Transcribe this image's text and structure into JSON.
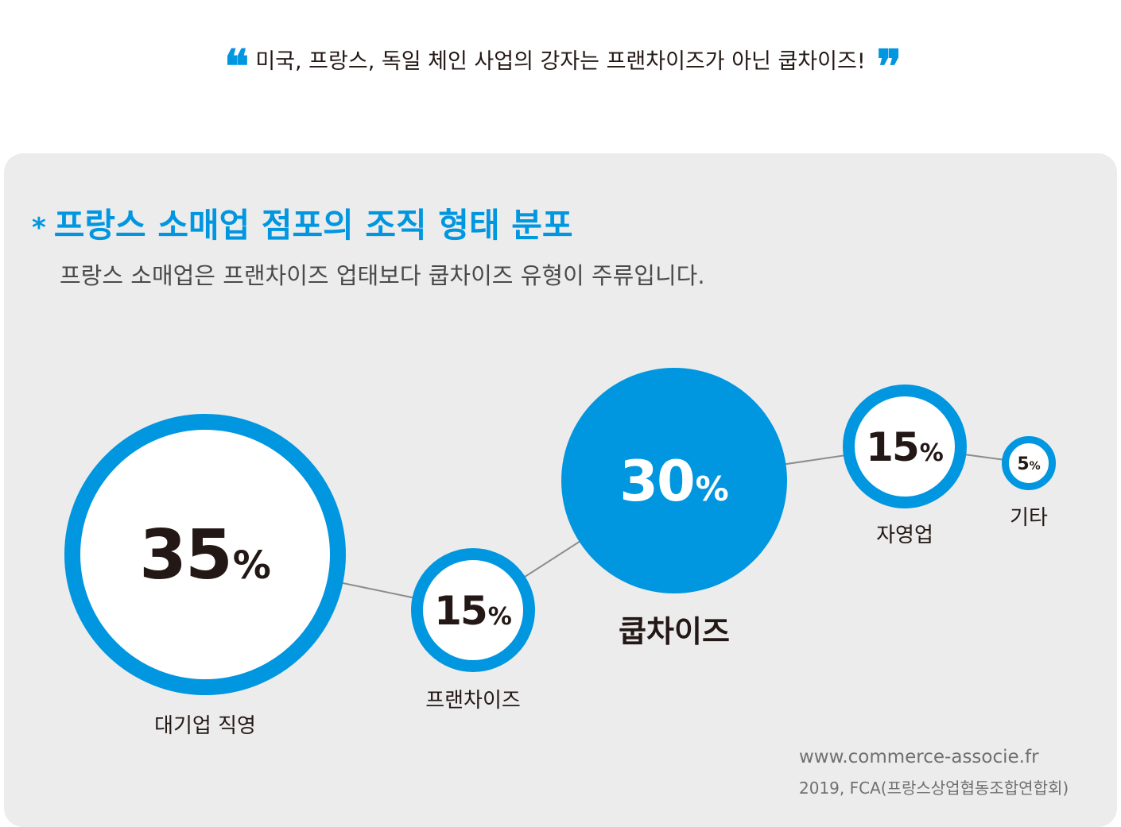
{
  "quote": {
    "text": "미국, 프랑스, 독일 체인 사업의 강자는 프랜차이즈가 아닌 쿱차이즈!",
    "open_mark": "❛❛",
    "close_mark": "❜❜"
  },
  "chart_data": {
    "type": "bubble",
    "title_marker": "*",
    "title": "프랑스 소매업 점포의 조직 형태 분포",
    "subtitle": "프랑스 소매업은 프랜차이즈 업태보다 쿱차이즈 유형이 주류입니다.",
    "unit": "%",
    "categories": [
      "대기업 직영",
      "프랜차이즈",
      "쿱차이즈",
      "자영업",
      "기타"
    ],
    "values": [
      35,
      15,
      30,
      15,
      5
    ],
    "highlighted": "쿱차이즈"
  },
  "colors": {
    "accent": "#0096e0",
    "text": "#231815",
    "panel": "#ececec",
    "connector": "#8c8c8c"
  },
  "source": {
    "url": "www.commerce-associe.fr",
    "org": "2019, FCA(프랑스상업협동조합연합회)"
  }
}
